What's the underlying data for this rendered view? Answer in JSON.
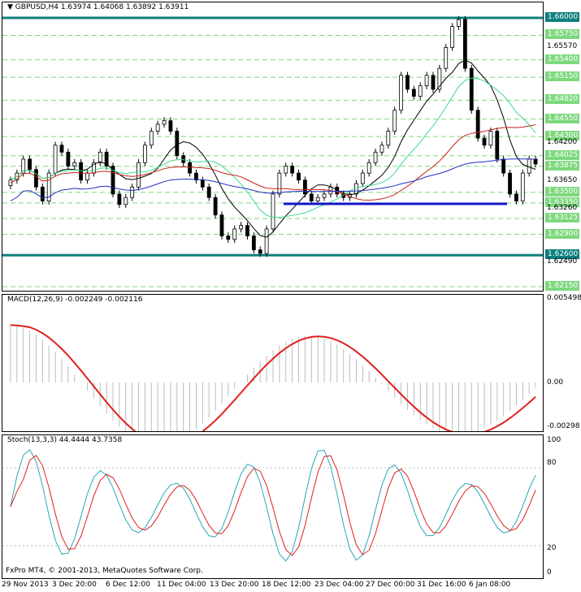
{
  "main": {
    "title": "GBPUSD,H4",
    "ohlc": "1.63974 1.64068 1.63892 1.63911",
    "price_levels": [
      {
        "label": "1.66000",
        "kind": "box",
        "color": "#0f7f7f"
      },
      {
        "label": "1.65750",
        "kind": "green-box"
      },
      {
        "label": "1.65570",
        "kind": "plain"
      },
      {
        "label": "1.65400",
        "kind": "green-box"
      },
      {
        "label": "1.65150",
        "kind": "green-box"
      },
      {
        "label": "1.64820",
        "kind": "green-box"
      },
      {
        "label": "1.64550",
        "kind": "green-box"
      },
      {
        "label": "1.64300",
        "kind": "green-box"
      },
      {
        "label": "1.64200",
        "kind": "plain"
      },
      {
        "label": "1.64025",
        "kind": "green-box"
      },
      {
        "label": "1.63875",
        "kind": "green-box"
      },
      {
        "label": "1.63650",
        "kind": "plain"
      },
      {
        "label": "1.63500",
        "kind": "green-box"
      },
      {
        "label": "1.63350",
        "kind": "green-box"
      },
      {
        "label": "1.63260",
        "kind": "plain"
      },
      {
        "label": "1.63125",
        "kind": "green-box"
      },
      {
        "label": "1.62900",
        "kind": "green-box"
      },
      {
        "label": "1.62600",
        "kind": "box",
        "color": "#0f7f7f"
      },
      {
        "label": "1.62490",
        "kind": "plain"
      },
      {
        "label": "1.62150",
        "kind": "green-box"
      }
    ]
  },
  "macd": {
    "title": "MACD(12,26,9) -0.002249 -0.002116",
    "axis": [
      "0.005498",
      "0.00",
      "-0.00298"
    ]
  },
  "stoch": {
    "title": "Stoch(13,3,3) 44.4444 43.7358",
    "axis": [
      "100",
      "80",
      "20",
      "0"
    ]
  },
  "copyright": "FxPro MT4, © 2001-2013, MetaQuotes Software Corp.",
  "time_axis": [
    "29 Nov 2013",
    "3 Dec 20:00",
    "6 Dec 12:00",
    "11 Dec 04:00",
    "13 Dec 20:00",
    "18 Dec 12:00",
    "23 Dec 04:00",
    "27 Dec 00:00",
    "31 Dec 16:00",
    "6 Jan 08:00"
  ],
  "colors": {
    "candle": "#000000",
    "ma_black": "#000000",
    "ma_green": "#3fd98f",
    "ma_red": "#c8201a",
    "ma_blue": "#1f2fbf",
    "support_line": "#1414c8",
    "level_teal": "#0f7f7f",
    "level_green": "#7ed87e",
    "macd_signal": "#e0201a",
    "macd_hist": "#bcbcbc",
    "stoch_main": "#2aa6b8",
    "stoch_signal": "#e0201a"
  }
}
